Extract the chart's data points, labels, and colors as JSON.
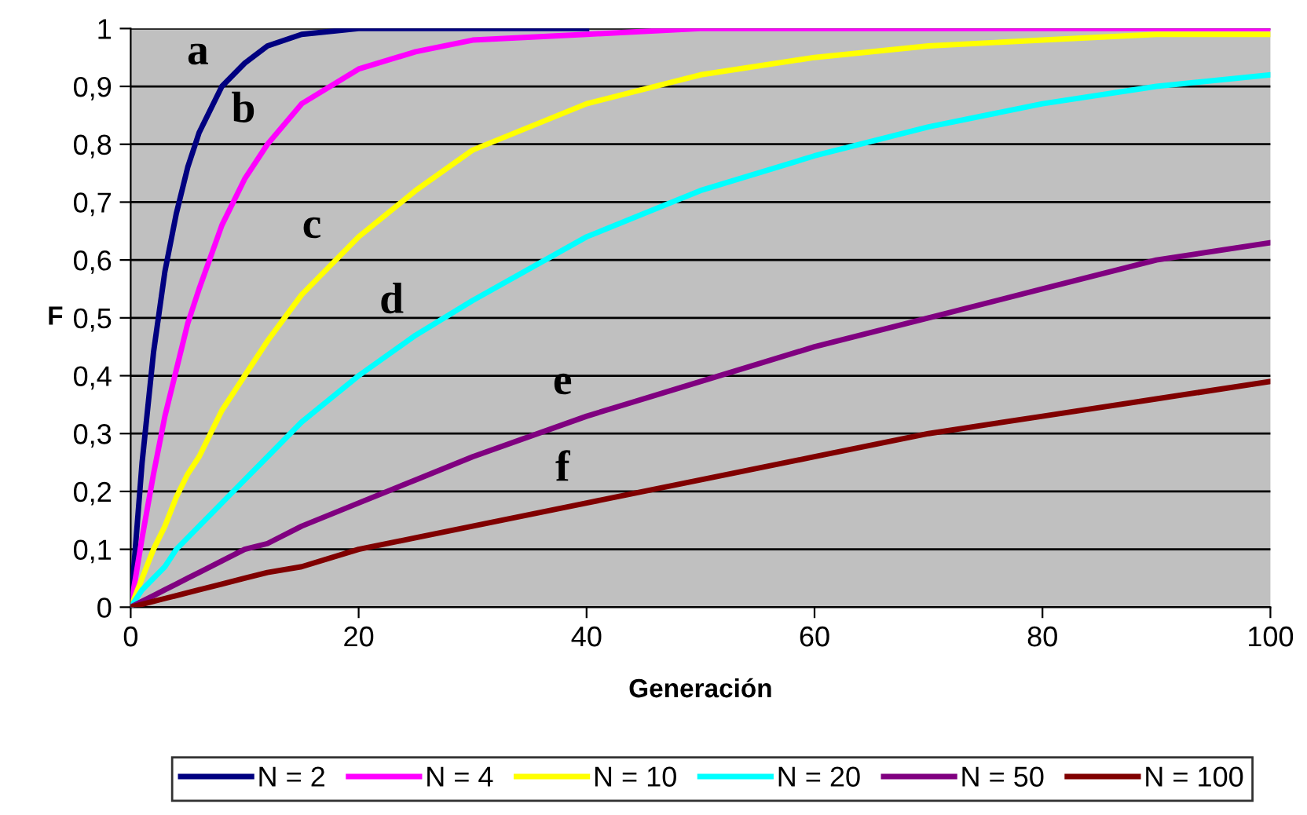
{
  "chart_data": {
    "type": "line",
    "xlabel": "Generación",
    "ylabel": "F",
    "x": [
      0,
      1,
      2,
      3,
      4,
      5,
      6,
      8,
      10,
      12,
      15,
      20,
      25,
      30,
      40,
      50,
      60,
      70,
      80,
      90,
      100
    ],
    "series": [
      {
        "name": "N = 2",
        "color": "#000080",
        "values": [
          0,
          0.25,
          0.44,
          0.58,
          0.68,
          0.76,
          0.82,
          0.9,
          0.94,
          0.97,
          0.99,
          1,
          1,
          1,
          1,
          null,
          null,
          null,
          null,
          null,
          null
        ]
      },
      {
        "name": "N = 4",
        "color": "#ff00ff",
        "values": [
          0,
          0.12,
          0.23,
          0.33,
          0.41,
          0.49,
          0.55,
          0.66,
          0.74,
          0.8,
          0.87,
          0.93,
          0.96,
          0.98,
          0.99,
          1,
          1,
          1,
          1,
          1,
          1
        ]
      },
      {
        "name": "N = 10",
        "color": "#ffff00",
        "values": [
          0,
          0.05,
          0.1,
          0.14,
          0.19,
          0.23,
          0.26,
          0.34,
          0.4,
          0.46,
          0.54,
          0.64,
          0.72,
          0.79,
          0.87,
          0.92,
          0.95,
          0.97,
          0.98,
          0.99,
          0.99
        ]
      },
      {
        "name": "N = 20",
        "color": "#00ffff",
        "values": [
          0,
          0.03,
          0.05,
          0.07,
          0.1,
          0.12,
          0.14,
          0.18,
          0.22,
          0.26,
          0.32,
          0.4,
          0.47,
          0.53,
          0.64,
          0.72,
          0.78,
          0.83,
          0.87,
          0.9,
          0.92
        ]
      },
      {
        "name": "N = 50",
        "color": "#800080",
        "values": [
          0,
          0.01,
          0.02,
          0.03,
          0.04,
          0.05,
          0.06,
          0.08,
          0.1,
          0.11,
          0.14,
          0.18,
          0.22,
          0.26,
          0.33,
          0.39,
          0.45,
          0.5,
          0.55,
          0.6,
          0.63
        ]
      },
      {
        "name": "N = 100",
        "color": "#800000",
        "values": [
          0,
          0.005,
          0.01,
          0.015,
          0.02,
          0.025,
          0.03,
          0.04,
          0.05,
          0.06,
          0.07,
          0.1,
          0.12,
          0.14,
          0.18,
          0.22,
          0.26,
          0.3,
          0.33,
          0.36,
          0.39
        ]
      }
    ],
    "annotations": [
      {
        "text": "a",
        "x": 8,
        "y": 0.9
      },
      {
        "text": "b",
        "x": 12,
        "y": 0.8
      },
      {
        "text": "c",
        "x": 18,
        "y": 0.6
      },
      {
        "text": "d",
        "x": 25,
        "y": 0.47
      },
      {
        "text": "e",
        "x": 40,
        "y": 0.33
      },
      {
        "text": "f",
        "x": 40,
        "y": 0.18
      }
    ],
    "xlim": [
      0,
      100
    ],
    "xticks": [
      0,
      20,
      40,
      60,
      80,
      100
    ],
    "ylim": [
      0,
      1
    ],
    "yticks": [
      0,
      {
        "value": 0.1,
        "label": "0,1"
      },
      {
        "value": 0.2,
        "label": "0,2"
      },
      {
        "value": 0.3,
        "label": "0,3"
      },
      {
        "value": 0.4,
        "label": "0,4"
      },
      {
        "value": 0.5,
        "label": "0,5"
      },
      {
        "value": 0.6,
        "label": "0,6"
      },
      {
        "value": 0.7,
        "label": "0,7"
      },
      {
        "value": 0.8,
        "label": "0,8"
      },
      {
        "value": 0.9,
        "label": "0,9"
      },
      1
    ],
    "grid": "y",
    "legend": "bottom",
    "marker": "none",
    "line_style": "solid"
  }
}
